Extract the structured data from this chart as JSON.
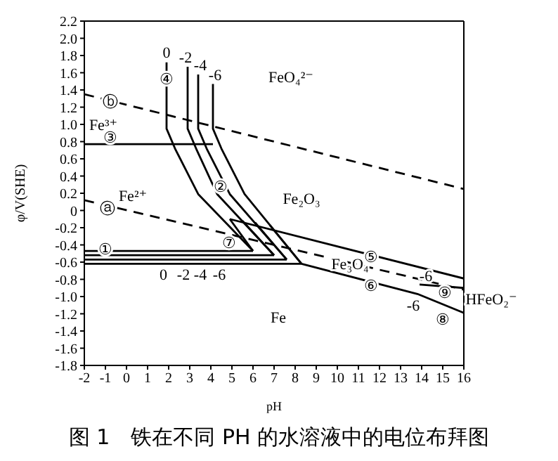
{
  "chart_data": {
    "type": "line",
    "title": "图 1　铁在不同 PH 的水溶液中的电位布拜图",
    "xlabel": "pH",
    "ylabel": "φ/V(SHE)",
    "xlim": [
      -2,
      16
    ],
    "xticks": [
      -2,
      -1,
      0,
      1,
      2,
      3,
      4,
      5,
      6,
      7,
      8,
      9,
      10,
      11,
      12,
      13,
      14,
      15,
      16
    ],
    "ylim": [
      -1.8,
      2.2
    ],
    "yticks": [
      -1.8,
      -1.6,
      -1.4,
      -1.2,
      {
        "value": -1,
        "label": "-1.0"
      },
      -0.8,
      -0.6,
      -0.4,
      -0.2,
      0,
      0.2,
      0.4,
      0.6,
      0.8,
      {
        "value": 1,
        "label": "1.0"
      },
      1.2,
      1.4,
      1.6,
      1.8,
      {
        "value": 2,
        "label": "2.0"
      },
      2.2
    ],
    "grid": false,
    "legend": false,
    "marker": "none",
    "series": [
      {
        "color": "#000000",
        "line_style": "dashed",
        "x": [
          -2,
          16
        ],
        "values": [
          1.35,
          0.25
        ]
      },
      {
        "color": "#000000",
        "line_style": "dashed",
        "x": [
          -2,
          16
        ],
        "values": [
          0.12,
          -0.92
        ]
      },
      {
        "color": "#000000",
        "x": [
          -2,
          4.1
        ],
        "values": [
          0.77,
          0.77
        ]
      },
      {
        "color": "#000000",
        "x": [
          1.9,
          1.9,
          2.3,
          3.4,
          6.0
        ],
        "values": [
          1.72,
          0.95,
          0.72,
          0.19,
          -0.47
        ]
      },
      {
        "color": "#000000",
        "x": [
          2.9,
          2.9,
          3.3,
          4.3,
          7.0
        ],
        "values": [
          1.67,
          0.95,
          0.72,
          0.19,
          -0.52
        ]
      },
      {
        "color": "#000000",
        "x": [
          3.4,
          3.4,
          3.8,
          4.9,
          7.6
        ],
        "values": [
          1.58,
          0.95,
          0.72,
          0.19,
          -0.57
        ]
      },
      {
        "color": "#000000",
        "x": [
          4.1,
          4.1,
          4.5,
          5.6,
          8.3
        ],
        "values": [
          1.47,
          0.95,
          0.72,
          0.19,
          -0.62
        ]
      },
      {
        "color": "#000000",
        "x": [
          -2,
          6.0
        ],
        "values": [
          -0.47,
          -0.47
        ]
      },
      {
        "color": "#000000",
        "x": [
          -2,
          7.0
        ],
        "values": [
          -0.52,
          -0.52
        ]
      },
      {
        "color": "#000000",
        "x": [
          -2,
          7.6
        ],
        "values": [
          -0.57,
          -0.57
        ]
      },
      {
        "color": "#000000",
        "x": [
          -2,
          8.3,
          13.8,
          16
        ],
        "values": [
          -0.62,
          -0.62,
          -0.97,
          -1.19
        ]
      },
      {
        "color": "#000000",
        "x": [
          4.9,
          6.0
        ],
        "values": [
          -0.1,
          -0.47
        ]
      },
      {
        "color": "#000000",
        "x": [
          5.5,
          7.0
        ],
        "values": [
          -0.12,
          -0.52
        ]
      },
      {
        "color": "#000000",
        "x": [
          6.1,
          7.6
        ],
        "values": [
          -0.14,
          -0.57
        ]
      },
      {
        "color": "#000000",
        "x": [
          6.8,
          8.3
        ],
        "values": [
          -0.17,
          -0.62
        ]
      },
      {
        "color": "#000000",
        "x": [
          4.9,
          16
        ],
        "values": [
          -0.1,
          -0.79
        ]
      },
      {
        "color": "#000000",
        "x": [
          13.9,
          16
        ],
        "values": [
          -0.86,
          -0.9
        ]
      }
    ],
    "annotations": [
      "FeO₄²⁻",
      "Fe³⁺",
      "Fe²⁺",
      "Fe₂O₃",
      "Fe₃O₄",
      "Fe",
      "HFeO₂⁻",
      "④",
      "ⓑ",
      "③",
      "②",
      "ⓐ",
      "⑦",
      "①",
      "⑤",
      "⑥",
      "⑨",
      "⑧",
      "0",
      "-2",
      "-4",
      "-6",
      "0",
      "-2",
      "-4",
      "-6",
      "-6",
      "-6"
    ]
  }
}
